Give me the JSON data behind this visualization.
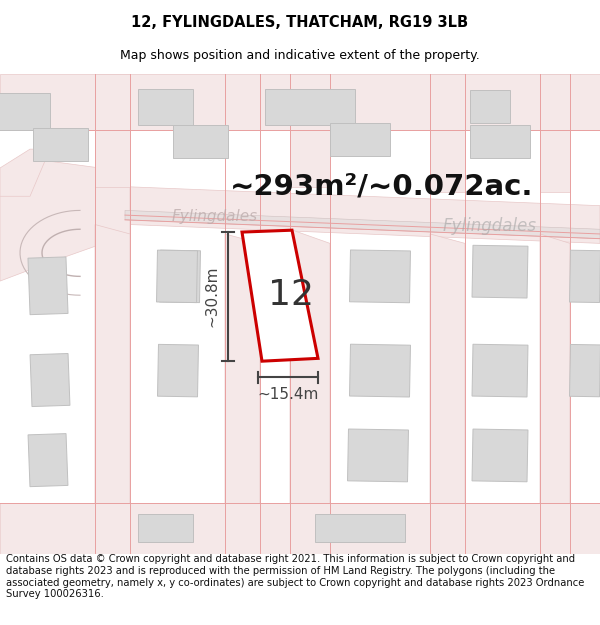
{
  "title_line1": "12, FYLINGDALES, THATCHAM, RG19 3LB",
  "title_line2": "Map shows position and indicative extent of the property.",
  "area_text": "~293m²/~0.072ac.",
  "street_name_center": "Fylingdales",
  "street_name_right": "Fylingdales",
  "property_number": "12",
  "dim_height": "~30.8m",
  "dim_width": "~15.4m",
  "footer_text": "Contains OS data © Crown copyright and database right 2021. This information is subject to Crown copyright and database rights 2023 and is reproduced with the permission of HM Land Registry. The polygons (including the associated geometry, namely x, y co-ordinates) are subject to Crown copyright and database rights 2023 Ordnance Survey 100026316.",
  "map_bg": "#f9f6f6",
  "road_fill": "#f5e8e8",
  "road_edge": "#e8c8c8",
  "building_fill": "#d8d8d8",
  "building_edge": "#c0c0c0",
  "road_line_color": "#e8a0a0",
  "boundary_color": "#cc0000",
  "boundary_lw": 2.2,
  "dim_color": "#444444",
  "area_text_color": "#111111",
  "street_label_color": "#bbaaaa",
  "street_label_color2": "#aaaaaa",
  "title_fontsize": 10.5,
  "subtitle_fontsize": 9,
  "area_fontsize": 21,
  "property_num_fontsize": 26,
  "dim_fontsize": 11,
  "street_label_fontsize": 11,
  "footer_fontsize": 7.2
}
